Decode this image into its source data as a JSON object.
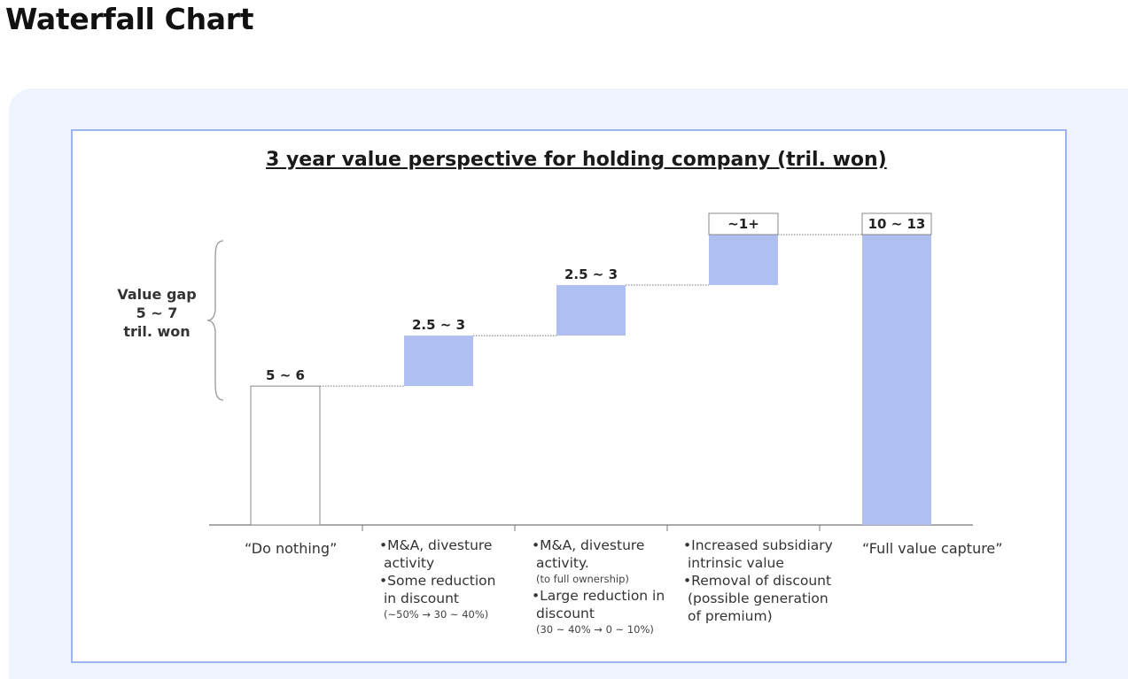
{
  "page_title": "Waterfall Chart",
  "colors": {
    "bar_fill": "#aebff0",
    "outline_bar": "#ffffff",
    "panel_bg": "#eef3fd",
    "frame_border": "#9db5ee"
  },
  "gap": {
    "line1": "Value gap",
    "line2": "5 ~ 7",
    "line3": "tril. won"
  },
  "chart_data": {
    "type": "waterfall",
    "title": "3 year value perspective for holding company (tril. won)",
    "unit": "tril. won",
    "ylim": [
      0,
      13
    ],
    "bars": [
      {
        "label": "5 ~ 6",
        "start": 0,
        "end": 5.5,
        "kind": "base"
      },
      {
        "label": "2.5 ~ 3",
        "start": 5.5,
        "end": 7.5,
        "kind": "step"
      },
      {
        "label": "2.5 ~ 3",
        "start": 7.5,
        "end": 9.5,
        "kind": "step"
      },
      {
        "label": "~1+",
        "start": 9.5,
        "end": 11.5,
        "kind": "step"
      },
      {
        "label": "10 ~ 13",
        "start": 0,
        "end": 11.5,
        "kind": "total"
      }
    ],
    "categories": [
      {
        "text": "“Do nothing”"
      },
      {
        "lines": [
          {
            "t": "•M&A, divesture",
            "style": "bullet"
          },
          {
            "t": "activity",
            "style": "cont"
          },
          {
            "t": "•Some reduction",
            "style": "bullet"
          },
          {
            "t": "in discount",
            "style": "cont"
          },
          {
            "t": "(~50% → 30 ~ 40%)",
            "style": "sub"
          }
        ]
      },
      {
        "lines": [
          {
            "t": "•M&A, divesture",
            "style": "bullet"
          },
          {
            "t": "activity.",
            "style": "cont"
          },
          {
            "t": "(to full ownership)",
            "style": "sub"
          },
          {
            "t": "•Large reduction in",
            "style": "bullet"
          },
          {
            "t": "discount",
            "style": "cont"
          },
          {
            "t": "(30 ~ 40% → 0 ~ 10%)",
            "style": "sub"
          }
        ]
      },
      {
        "lines": [
          {
            "t": "•Increased subsidiary",
            "style": "bullet"
          },
          {
            "t": "intrinsic value",
            "style": "cont"
          },
          {
            "t": "•Removal of discount",
            "style": "bullet"
          },
          {
            "t": "(possible generation",
            "style": "cont"
          },
          {
            "t": "of premium)",
            "style": "cont"
          }
        ]
      },
      {
        "text": "“Full value capture”"
      }
    ]
  }
}
